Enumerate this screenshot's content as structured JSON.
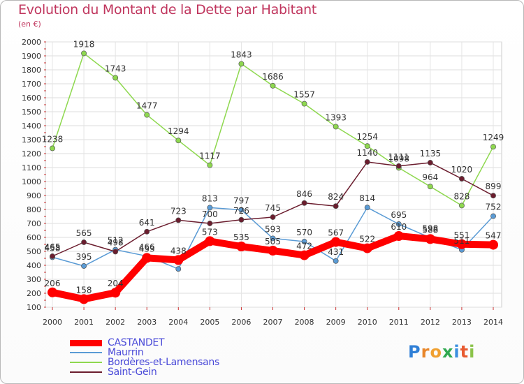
{
  "title": "Evolution du Montant de la Dette par Habitant",
  "unit_label": "(en €)",
  "logo": {
    "letters": [
      "P",
      "r",
      "o",
      "x",
      "i",
      "t",
      "i"
    ],
    "colors": [
      "#2f7fd6",
      "#e8862a",
      "#f0a030",
      "#2fa84f",
      "#3b8fe0",
      "#e85a30",
      "#8bc34a"
    ]
  },
  "chart_data": {
    "type": "line",
    "title": "Evolution du Montant de la Dette par Habitant",
    "subtitle": "(en €)",
    "x": [
      "2000",
      "2001",
      "2002",
      "2003",
      "2004",
      "2005",
      "2006",
      "2007",
      "2008",
      "2009",
      "2010",
      "2011",
      "2012",
      "2013",
      "2014"
    ],
    "ylim": [
      100,
      2000
    ],
    "yticks": [
      100,
      200,
      300,
      400,
      500,
      600,
      700,
      800,
      900,
      1000,
      1100,
      1200,
      1300,
      1400,
      1500,
      1600,
      1700,
      1800,
      1900,
      2000
    ],
    "grid": true,
    "legend_position": "bottom-left",
    "series": [
      {
        "name": "CASTANDET",
        "color": "#ff0000",
        "emphasis": true,
        "values": [
          206,
          158,
          204,
          453,
          438,
          573,
          535,
          505,
          472,
          567,
          522,
          610,
          588,
          551,
          547
        ],
        "labels": [
          "206",
          "158",
          "204",
          "453",
          "438",
          "573",
          "535",
          "505",
          "472",
          "567",
          "522",
          "610",
          "588",
          "551",
          "547"
        ]
      },
      {
        "name": "Maurrin",
        "color": "#5a9bd5",
        "values": [
          458,
          395,
          512,
          466,
          374,
          813,
          797,
          593,
          570,
          431,
          814,
          695,
          598,
          511,
          752
        ],
        "labels": [
          "458",
          "395",
          "512",
          "466",
          "",
          "813",
          "797",
          "593",
          "570",
          "431",
          "814",
          "695",
          "598",
          "511",
          "752"
        ]
      },
      {
        "name": "Bordères-et-Lamensans",
        "color": "#8ed84f",
        "values": [
          1238,
          1918,
          1743,
          1477,
          1294,
          1117,
          1843,
          1686,
          1557,
          1393,
          1254,
          1098,
          964,
          828,
          1249
        ],
        "labels": [
          "1238",
          "1918",
          "1743",
          "1477",
          "1294",
          "1117",
          "1843",
          "1686",
          "1557",
          "1393",
          "1254",
          "1098",
          "964",
          "828",
          "1249"
        ]
      },
      {
        "name": "Saint-Gein",
        "color": "#6b1d2e",
        "values": [
          465,
          565,
          498,
          641,
          723,
          700,
          726,
          745,
          846,
          824,
          1140,
          1111,
          1135,
          1020,
          899
        ],
        "labels": [
          "465",
          "565",
          "498",
          "641",
          "723",
          "700",
          "726",
          "745",
          "846",
          "824",
          "1140",
          "1111",
          "1135",
          "1020",
          "899"
        ]
      }
    ]
  }
}
